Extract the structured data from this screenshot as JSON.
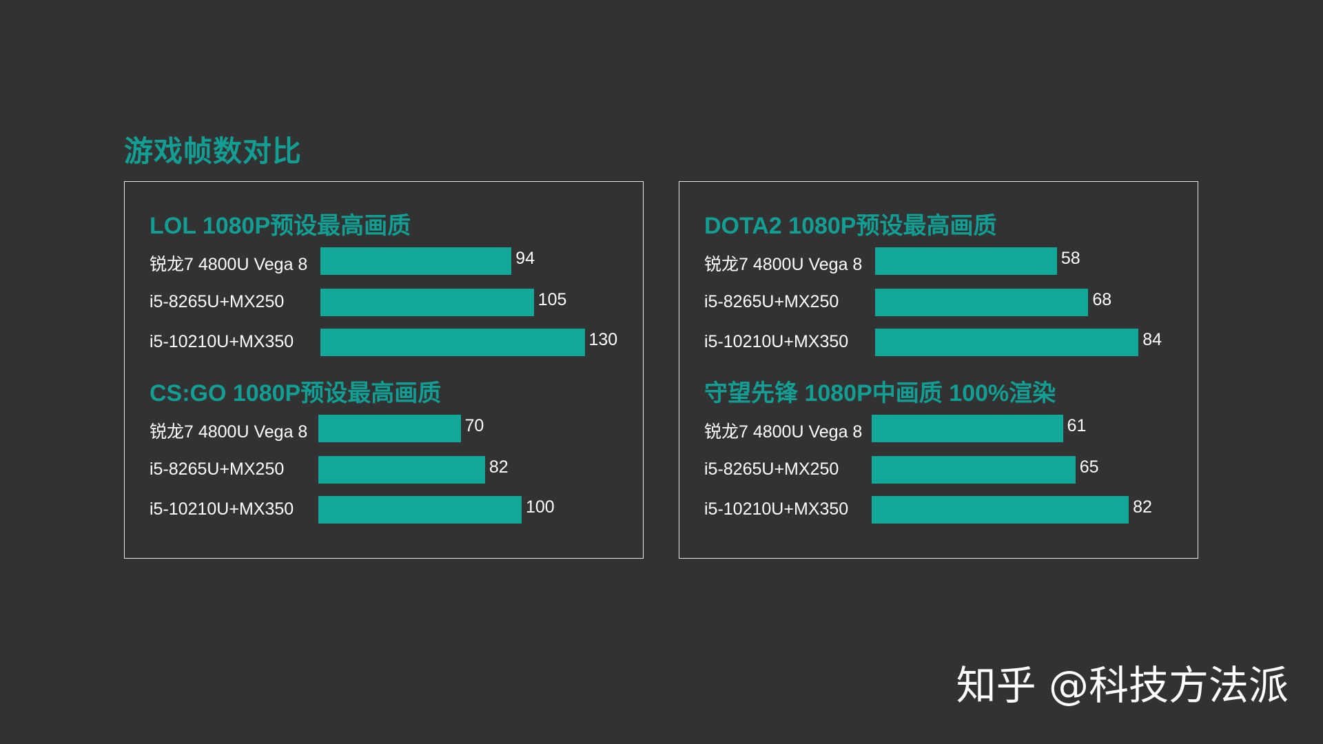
{
  "page_title": "游戏帧数对比",
  "watermark": "知乎 @科技方法派",
  "colors": {
    "background": "#323232",
    "accent": "#139e94",
    "bar": "#0fa89b",
    "text": "#ffffff",
    "border": "#e8e8e8"
  },
  "chart_data": [
    {
      "type": "bar",
      "orientation": "horizontal",
      "title": "LOL 1080P预设最高画质",
      "categories": [
        "锐龙7 4800U Vega 8",
        "i5-8265U+MX250",
        "i5-10210U+MX350"
      ],
      "values": [
        94,
        105,
        130
      ]
    },
    {
      "type": "bar",
      "orientation": "horizontal",
      "title": "CS:GO 1080P预设最高画质",
      "categories": [
        "锐龙7 4800U Vega 8",
        "i5-8265U+MX250",
        "i5-10210U+MX350"
      ],
      "values": [
        70,
        82,
        100
      ]
    },
    {
      "type": "bar",
      "orientation": "horizontal",
      "title": "DOTA2 1080P预设最高画质",
      "categories": [
        "锐龙7 4800U Vega 8",
        "i5-8265U+MX250",
        "i5-10210U+MX350"
      ],
      "values": [
        58,
        68,
        84
      ]
    },
    {
      "type": "bar",
      "orientation": "horizontal",
      "title": "守望先锋 1080P中画质 100%渲染",
      "categories": [
        "锐龙7 4800U Vega 8",
        "i5-8265U+MX250",
        "i5-10210U+MX350"
      ],
      "values": [
        61,
        65,
        82
      ]
    }
  ]
}
